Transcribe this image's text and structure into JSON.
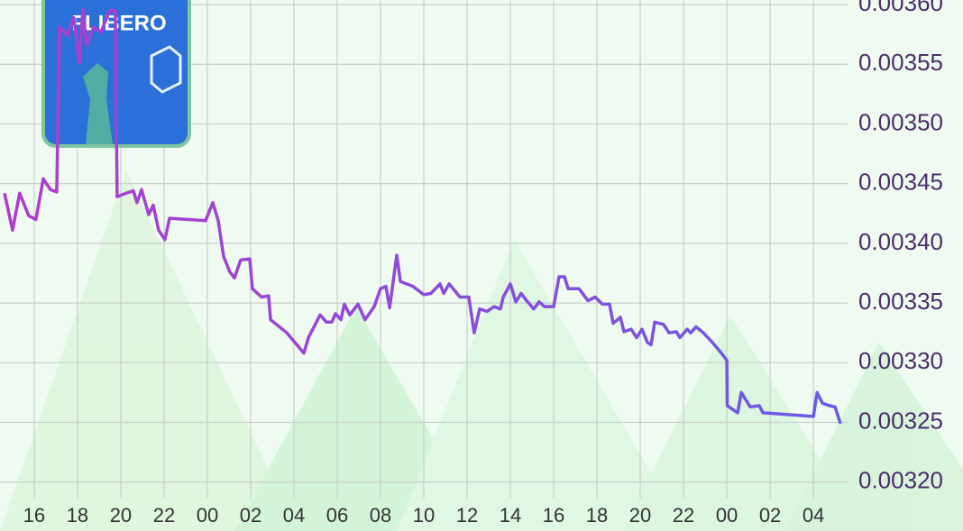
{
  "chart_data": {
    "type": "line",
    "logo_text": "FLIBERO",
    "line_gradient": [
      "#b03ccc",
      "#6a5ae6"
    ],
    "grid": true,
    "xlim": [
      14.42,
      53.58
    ],
    "ylim": [
      0.00319,
      0.0036
    ],
    "xticks": [
      {
        "value": 16,
        "label": "16"
      },
      {
        "value": 18,
        "label": "18"
      },
      {
        "value": 20,
        "label": "20"
      },
      {
        "value": 22,
        "label": "22"
      },
      {
        "value": 24,
        "label": "00"
      },
      {
        "value": 26,
        "label": "02"
      },
      {
        "value": 28,
        "label": "04"
      },
      {
        "value": 30,
        "label": "06"
      },
      {
        "value": 32,
        "label": "08"
      },
      {
        "value": 34,
        "label": "10"
      },
      {
        "value": 36,
        "label": "12"
      },
      {
        "value": 38,
        "label": "14"
      },
      {
        "value": 40,
        "label": "16"
      },
      {
        "value": 42,
        "label": "18"
      },
      {
        "value": 44,
        "label": "20"
      },
      {
        "value": 46,
        "label": "22"
      },
      {
        "value": 48,
        "label": "00"
      },
      {
        "value": 50,
        "label": "02"
      },
      {
        "value": 52,
        "label": "04"
      }
    ],
    "yticks": [
      {
        "value": 0.0032,
        "label": "0.00320"
      },
      {
        "value": 0.00325,
        "label": "0.00325"
      },
      {
        "value": 0.0033,
        "label": "0.00330"
      },
      {
        "value": 0.00335,
        "label": "0.00335"
      },
      {
        "value": 0.0034,
        "label": "0.00340"
      },
      {
        "value": 0.00345,
        "label": "0.00345"
      },
      {
        "value": 0.0035,
        "label": "0.00350"
      },
      {
        "value": 0.00355,
        "label": "0.00355"
      },
      {
        "value": 0.0036,
        "label": "0.00360"
      }
    ],
    "x": [
      14.63,
      15.0,
      15.33,
      15.75,
      16.08,
      16.42,
      16.75,
      17.04,
      17.17,
      17.54,
      17.83,
      18.08,
      18.25,
      18.42,
      18.75,
      19.08,
      19.5,
      19.75,
      19.83,
      20.25,
      20.58,
      20.75,
      20.96,
      21.29,
      21.5,
      21.75,
      22.04,
      22.25,
      23.92,
      24.25,
      24.5,
      24.75,
      25.04,
      25.25,
      25.54,
      25.96,
      26.08,
      26.5,
      26.83,
      26.92,
      27.67,
      28.46,
      28.67,
      29.21,
      29.5,
      29.75,
      29.92,
      30.17,
      30.33,
      30.58,
      30.96,
      31.29,
      31.71,
      32.0,
      32.25,
      32.42,
      32.75,
      32.92,
      33.5,
      34.0,
      34.33,
      34.75,
      34.92,
      35.17,
      35.67,
      36.08,
      36.33,
      36.58,
      36.92,
      37.25,
      37.54,
      37.67,
      38.0,
      38.25,
      38.5,
      38.75,
      39.08,
      39.33,
      39.58,
      40.0,
      40.25,
      40.5,
      40.67,
      41.17,
      41.58,
      41.92,
      42.25,
      42.58,
      42.75,
      43.08,
      43.25,
      43.58,
      43.83,
      44.08,
      44.33,
      44.5,
      44.67,
      45.08,
      45.33,
      45.67,
      45.83,
      46.17,
      46.33,
      46.58,
      46.92,
      47.33,
      47.75,
      48.0,
      48.02,
      48.5,
      48.67,
      49.08,
      49.5,
      49.67,
      52.0,
      52.17,
      52.42,
      52.75,
      53.0,
      53.25
    ],
    "values": [
      0.003442,
      0.003411,
      0.003442,
      0.003423,
      0.00342,
      0.003454,
      0.003445,
      0.003443,
      0.003581,
      0.003574,
      0.003589,
      0.003551,
      0.003596,
      0.003566,
      0.003581,
      0.003577,
      0.003595,
      0.003595,
      0.003439,
      0.003442,
      0.003444,
      0.003434,
      0.003445,
      0.003424,
      0.003432,
      0.003411,
      0.003403,
      0.003421,
      0.003419,
      0.003434,
      0.003419,
      0.003389,
      0.003376,
      0.003371,
      0.003386,
      0.003387,
      0.003362,
      0.003355,
      0.003356,
      0.003336,
      0.003325,
      0.003308,
      0.003321,
      0.00334,
      0.003334,
      0.003334,
      0.003341,
      0.003336,
      0.003349,
      0.00334,
      0.003349,
      0.003336,
      0.003347,
      0.003362,
      0.003364,
      0.003346,
      0.00339,
      0.003368,
      0.003364,
      0.003357,
      0.003358,
      0.003366,
      0.003358,
      0.003366,
      0.003355,
      0.003355,
      0.003325,
      0.003345,
      0.003343,
      0.003347,
      0.003345,
      0.003355,
      0.003366,
      0.003351,
      0.003358,
      0.003352,
      0.003345,
      0.003351,
      0.003347,
      0.003347,
      0.003372,
      0.003372,
      0.003362,
      0.003362,
      0.003352,
      0.003355,
      0.003349,
      0.003349,
      0.003333,
      0.003338,
      0.003326,
      0.003328,
      0.003321,
      0.003328,
      0.003317,
      0.003315,
      0.003334,
      0.003332,
      0.003325,
      0.003326,
      0.003321,
      0.003328,
      0.003325,
      0.00333,
      0.003325,
      0.003317,
      0.003308,
      0.003302,
      0.003264,
      0.003258,
      0.003275,
      0.003263,
      0.003264,
      0.003258,
      0.003255,
      0.003275,
      0.003266,
      0.003264,
      0.003263,
      0.003249
    ]
  }
}
